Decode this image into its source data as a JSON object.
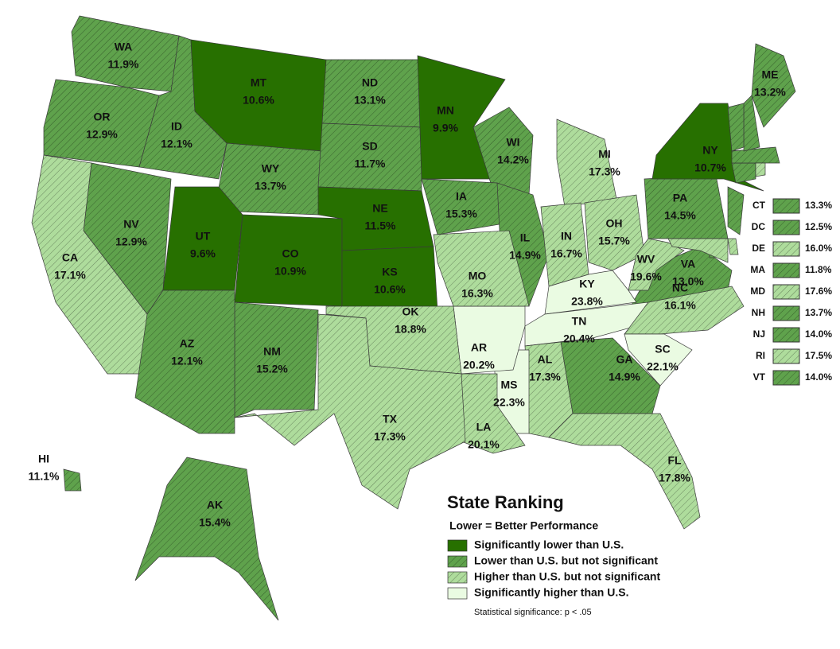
{
  "title": "State Ranking",
  "subtitle": "Lower = Better Performance",
  "note": "Statistical significance: p < .05",
  "legend": [
    {
      "label": "Significantly lower than U.S.",
      "color": "#277000",
      "hatch": false
    },
    {
      "label": "Lower than U.S. but not significant",
      "color": "#5fa24c",
      "hatch": true
    },
    {
      "label": "Higher than U.S. but not significant",
      "color": "#aedc9c",
      "hatch": true
    },
    {
      "label": "Significantly higher than U.S.",
      "color": "#eafbe2",
      "hatch": false
    }
  ],
  "states": [
    {
      "abbr": "WA",
      "value": "11.9%",
      "group": 1
    },
    {
      "abbr": "OR",
      "value": "12.9%",
      "group": 1
    },
    {
      "abbr": "ID",
      "value": "12.1%",
      "group": 1
    },
    {
      "abbr": "MT",
      "value": "10.6%",
      "group": 0
    },
    {
      "abbr": "WY",
      "value": "13.7%",
      "group": 1
    },
    {
      "abbr": "ND",
      "value": "13.1%",
      "group": 1
    },
    {
      "abbr": "SD",
      "value": "11.7%",
      "group": 1
    },
    {
      "abbr": "MN",
      "value": "9.9%",
      "group": 0
    },
    {
      "abbr": "WI",
      "value": "14.2%",
      "group": 1
    },
    {
      "abbr": "MI",
      "value": "17.3%",
      "group": 2
    },
    {
      "abbr": "NV",
      "value": "12.9%",
      "group": 1
    },
    {
      "abbr": "CA",
      "value": "17.1%",
      "group": 2
    },
    {
      "abbr": "UT",
      "value": "9.6%",
      "group": 0
    },
    {
      "abbr": "CO",
      "value": "10.9%",
      "group": 0
    },
    {
      "abbr": "NE",
      "value": "11.5%",
      "group": 0
    },
    {
      "abbr": "KS",
      "value": "10.6%",
      "group": 0
    },
    {
      "abbr": "IA",
      "value": "15.3%",
      "group": 1
    },
    {
      "abbr": "IL",
      "value": "14.9%",
      "group": 1
    },
    {
      "abbr": "IN",
      "value": "16.7%",
      "group": 2
    },
    {
      "abbr": "OH",
      "value": "15.7%",
      "group": 2
    },
    {
      "abbr": "PA",
      "value": "14.5%",
      "group": 1
    },
    {
      "abbr": "NY",
      "value": "10.7%",
      "group": 0
    },
    {
      "abbr": "ME",
      "value": "13.2%",
      "group": 1
    },
    {
      "abbr": "VA",
      "value": "13.0%",
      "group": 1
    },
    {
      "abbr": "WV",
      "value": "19.6%",
      "group": 2
    },
    {
      "abbr": "KY",
      "value": "23.8%",
      "group": 3
    },
    {
      "abbr": "TN",
      "value": "20.4%",
      "group": 3
    },
    {
      "abbr": "NC",
      "value": "16.1%",
      "group": 2
    },
    {
      "abbr": "SC",
      "value": "22.1%",
      "group": 3
    },
    {
      "abbr": "GA",
      "value": "14.9%",
      "group": 1
    },
    {
      "abbr": "AL",
      "value": "17.3%",
      "group": 2
    },
    {
      "abbr": "MS",
      "value": "22.3%",
      "group": 3
    },
    {
      "abbr": "AR",
      "value": "20.2%",
      "group": 3
    },
    {
      "abbr": "LA",
      "value": "20.1%",
      "group": 2
    },
    {
      "abbr": "MO",
      "value": "16.3%",
      "group": 2
    },
    {
      "abbr": "OK",
      "value": "18.8%",
      "group": 2
    },
    {
      "abbr": "TX",
      "value": "17.3%",
      "group": 2
    },
    {
      "abbr": "NM",
      "value": "15.2%",
      "group": 1
    },
    {
      "abbr": "AZ",
      "value": "12.1%",
      "group": 1
    },
    {
      "abbr": "FL",
      "value": "17.8%",
      "group": 2
    },
    {
      "abbr": "AK",
      "value": "15.4%",
      "group": 1
    },
    {
      "abbr": "HI",
      "value": "11.1%",
      "group": 1
    }
  ],
  "inset": [
    {
      "abbr": "CT",
      "value": "13.3%",
      "group": 1
    },
    {
      "abbr": "DC",
      "value": "12.5%",
      "group": 1
    },
    {
      "abbr": "DE",
      "value": "16.0%",
      "group": 2
    },
    {
      "abbr": "MA",
      "value": "11.8%",
      "group": 1
    },
    {
      "abbr": "MD",
      "value": "17.6%",
      "group": 2
    },
    {
      "abbr": "NH",
      "value": "13.7%",
      "group": 1
    },
    {
      "abbr": "NJ",
      "value": "14.0%",
      "group": 1
    },
    {
      "abbr": "RI",
      "value": "17.5%",
      "group": 2
    },
    {
      "abbr": "VT",
      "value": "14.0%",
      "group": 1
    }
  ]
}
